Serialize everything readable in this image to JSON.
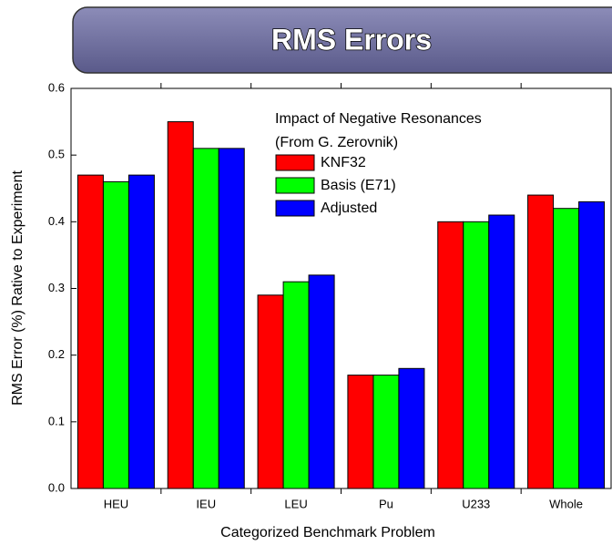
{
  "chart_data": {
    "type": "bar",
    "title": "RMS Errors",
    "legend_title": [
      "Impact of Negative Resonances",
      "(From G. Zerovnik)"
    ],
    "x_label": "Categorized Benchmark Problem",
    "y_label": "RMS Error (%) Rative to Experiment",
    "categories": [
      "HEU",
      "IEU",
      "LEU",
      "Pu",
      "U233",
      "Whole"
    ],
    "series": [
      {
        "name": "KNF32",
        "color": "#ff0000",
        "values": [
          0.47,
          0.55,
          0.29,
          0.17,
          0.4,
          0.44
        ]
      },
      {
        "name": "Basis (E71)",
        "color": "#00ff00",
        "values": [
          0.46,
          0.51,
          0.31,
          0.17,
          0.4,
          0.42
        ]
      },
      {
        "name": "Adjusted",
        "color": "#0000ff",
        "values": [
          0.47,
          0.51,
          0.32,
          0.18,
          0.41,
          0.43
        ]
      }
    ],
    "ylim": [
      0,
      0.6
    ],
    "yticks": [
      {
        "value": 0,
        "label": "0.0"
      },
      {
        "value": 0.1,
        "label": "0.1"
      },
      {
        "value": 0.2,
        "label": "0.2"
      },
      {
        "value": 0.3,
        "label": "0.3"
      },
      {
        "value": 0.4,
        "label": "0.4"
      },
      {
        "value": 0.5,
        "label": "0.5"
      },
      {
        "value": 0.6,
        "label": "0.6"
      }
    ],
    "grid": false,
    "legend": "upper center"
  }
}
